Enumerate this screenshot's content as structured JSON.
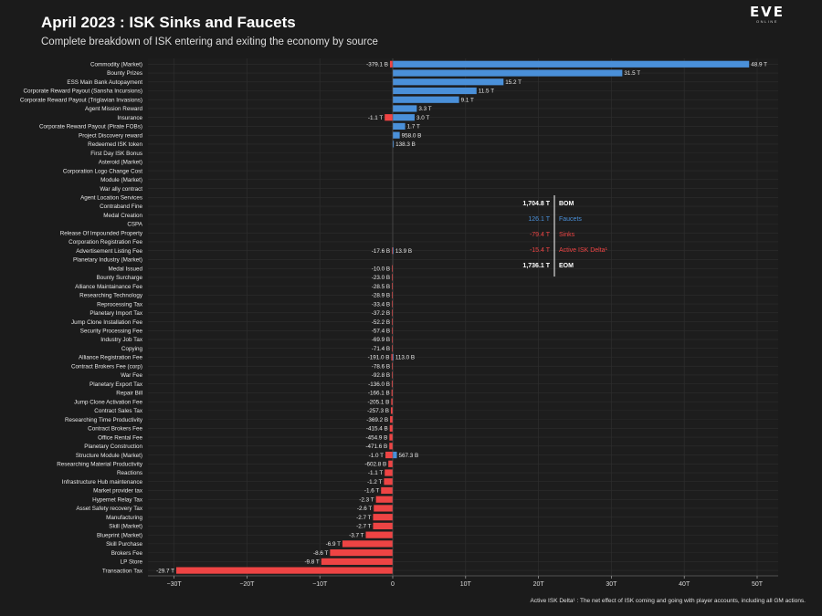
{
  "header": {
    "title": "April 2023 : ISK Sinks and Faucets",
    "subtitle": "Complete breakdown of ISK entering and exiting the economy by source"
  },
  "logo": {
    "main": "EVE",
    "sub": "ONLINE"
  },
  "colors": {
    "faucet": "#4a90d9",
    "sink": "#ee4444",
    "background": "#1b1b1b",
    "grid": "#2e2e2e"
  },
  "chart_data": {
    "type": "bar",
    "orientation": "horizontal",
    "title": "April 2023 : ISK Sinks and Faucets",
    "subtitle": "Complete breakdown of ISK entering and exiting the economy by source",
    "xlim": [
      -30,
      50
    ],
    "xunit": "trillion ISK",
    "grid": true,
    "xticks": [
      {
        "value": -30,
        "label": "−30T"
      },
      {
        "value": -20,
        "label": "−20T"
      },
      {
        "value": -10,
        "label": "−10T"
      },
      {
        "value": 0,
        "label": "0"
      },
      {
        "value": 10,
        "label": "10T"
      },
      {
        "value": 20,
        "label": "20T"
      },
      {
        "value": 30,
        "label": "30T"
      },
      {
        "value": 40,
        "label": "40T"
      },
      {
        "value": 50,
        "label": "50T"
      }
    ],
    "categories": [
      {
        "name": "Commodity (Market)",
        "sink": -0.3791,
        "sink_label": "-379.1 B",
        "faucet": 48.9,
        "faucet_label": "48.9 T"
      },
      {
        "name": "Bounty Prizes",
        "faucet": 31.5,
        "faucet_label": "31.5 T"
      },
      {
        "name": "ESS Main Bank Autopayment",
        "faucet": 15.2,
        "faucet_label": "15.2 T"
      },
      {
        "name": "Corporate Reward Payout (Sansha Incursions)",
        "faucet": 11.5,
        "faucet_label": "11.5 T"
      },
      {
        "name": "Corporate Reward Payout (Triglavian Invasions)",
        "faucet": 9.1,
        "faucet_label": "9.1 T"
      },
      {
        "name": "Agent Mission Reward",
        "faucet": 3.3,
        "faucet_label": "3.3 T"
      },
      {
        "name": "Insurance",
        "sink": -1.1,
        "sink_label": "-1.1 T",
        "faucet": 3.0,
        "faucet_label": "3.0 T"
      },
      {
        "name": "Corporate Reward Payout (Pirate FOBs)",
        "faucet": 1.7,
        "faucet_label": "1.7 T"
      },
      {
        "name": "Project Discovery reward",
        "faucet": 0.958,
        "faucet_label": "958.0 B"
      },
      {
        "name": "Redeemed ISK token",
        "faucet": 0.1383,
        "faucet_label": "138.3 B"
      },
      {
        "name": "First Day ISK Bonus"
      },
      {
        "name": "Asteroid (Market)"
      },
      {
        "name": "Corporation Logo Change Cost"
      },
      {
        "name": "Module (Market)"
      },
      {
        "name": "War ally contract"
      },
      {
        "name": "Agent Location Services"
      },
      {
        "name": "Contraband Fine"
      },
      {
        "name": "Medal Creation"
      },
      {
        "name": "CSPA"
      },
      {
        "name": "Release Of Impounded Property"
      },
      {
        "name": "Corporation Registration Fee"
      },
      {
        "name": "Advertisement Listing Fee",
        "sink": -0.0176,
        "sink_label": "-17.6 B",
        "faucet": 0.0139,
        "faucet_label": "13.9 B"
      },
      {
        "name": "Planetary Industry (Market)"
      },
      {
        "name": "Medal Issued",
        "sink": -0.01,
        "sink_label": "-10.0 B"
      },
      {
        "name": "Bounty Surcharge",
        "sink": -0.023,
        "sink_label": "-23.0 B"
      },
      {
        "name": "Alliance Maintainance Fee",
        "sink": -0.0285,
        "sink_label": "-28.5 B"
      },
      {
        "name": "Researching Technology",
        "sink": -0.0289,
        "sink_label": "-28.9 B"
      },
      {
        "name": "Reprocessing Tax",
        "sink": -0.0334,
        "sink_label": "-33.4 B"
      },
      {
        "name": "Planetary Import Tax",
        "sink": -0.0372,
        "sink_label": "-37.2 B"
      },
      {
        "name": "Jump Clone Installation Fee",
        "sink": -0.0522,
        "sink_label": "-52.2 B"
      },
      {
        "name": "Security Processing Fee",
        "sink": -0.0574,
        "sink_label": "-57.4 B"
      },
      {
        "name": "Industry Job Tax",
        "sink": -0.0699,
        "sink_label": "-69.9 B"
      },
      {
        "name": "Copying",
        "sink": -0.0714,
        "sink_label": "-71.4 B"
      },
      {
        "name": "Alliance Registration Fee",
        "sink": -0.191,
        "sink_label": "-191.0 B",
        "faucet": 0.113,
        "faucet_label": "113.0 B"
      },
      {
        "name": "Contract Brokers Fee (corp)",
        "sink": -0.0786,
        "sink_label": "-78.6 B"
      },
      {
        "name": "War Fee",
        "sink": -0.0928,
        "sink_label": "-92.8 B"
      },
      {
        "name": "Planetary Export Tax",
        "sink": -0.136,
        "sink_label": "-136.0 B"
      },
      {
        "name": "Repair Bill",
        "sink": -0.1661,
        "sink_label": "-166.1 B"
      },
      {
        "name": "Jump Clone Activation Fee",
        "sink": -0.2051,
        "sink_label": "-205.1 B"
      },
      {
        "name": "Contract Sales Tax",
        "sink": -0.2573,
        "sink_label": "-257.3 B"
      },
      {
        "name": "Researching Time Productivity",
        "sink": -0.3692,
        "sink_label": "-369.2 B"
      },
      {
        "name": "Contract Brokers Fee",
        "sink": -0.4154,
        "sink_label": "-415.4 B"
      },
      {
        "name": "Office Rental Fee",
        "sink": -0.4549,
        "sink_label": "-454.9 B"
      },
      {
        "name": "Planetary Construction",
        "sink": -0.4716,
        "sink_label": "-471.6 B"
      },
      {
        "name": "Structure Module (Market)",
        "sink": -1.0,
        "sink_label": "-1.0 T",
        "faucet": 0.5673,
        "faucet_label": "567.3 B"
      },
      {
        "name": "Researching Material Productivity",
        "sink": -0.6028,
        "sink_label": "-602.8 B"
      },
      {
        "name": "Reactions",
        "sink": -1.1,
        "sink_label": "-1.1 T"
      },
      {
        "name": "Infrastructure Hub maintenance",
        "sink": -1.2,
        "sink_label": "-1.2 T"
      },
      {
        "name": "Market provider tax",
        "sink": -1.6,
        "sink_label": "-1.6 T"
      },
      {
        "name": "Hypernet Relay Tax",
        "sink": -2.3,
        "sink_label": "-2.3 T"
      },
      {
        "name": "Asset Safety recovery Tax",
        "sink": -2.6,
        "sink_label": "-2.6 T"
      },
      {
        "name": "Manufacturing",
        "sink": -2.7,
        "sink_label": "-2.7 T"
      },
      {
        "name": "Skill (Market)",
        "sink": -2.7,
        "sink_label": "-2.7 T"
      },
      {
        "name": "Blueprint (Market)",
        "sink": -3.7,
        "sink_label": "-3.7 T"
      },
      {
        "name": "Skill Purchase",
        "sink": -6.9,
        "sink_label": "-6.9 T"
      },
      {
        "name": "Brokers Fee",
        "sink": -8.6,
        "sink_label": "-8.6 T"
      },
      {
        "name": "LP Store",
        "sink": -9.8,
        "sink_label": "-9.8 T"
      },
      {
        "name": "Transaction Tax",
        "sink": -29.7,
        "sink_label": "-29.7 T"
      }
    ],
    "summary": [
      {
        "value": "1,704.8 T",
        "label": "BOM",
        "color": "#ffffff",
        "bold": true
      },
      {
        "value": "126.1 T",
        "label": "Faucets",
        "color": "#4a90d9",
        "bold": false
      },
      {
        "value": "-79.4 T",
        "label": "Sinks",
        "color": "#ee4444",
        "bold": false
      },
      {
        "value": "-15.4 T",
        "label": "Active ISK Delta¹",
        "color": "#ee4444",
        "bold": false
      },
      {
        "value": "1,736.1 T",
        "label": "EOM",
        "color": "#ffffff",
        "bold": true
      }
    ]
  },
  "footnote": "Active ISK Delta¹ : The net effect of ISK coming and going with player accounts, including all GM actions."
}
